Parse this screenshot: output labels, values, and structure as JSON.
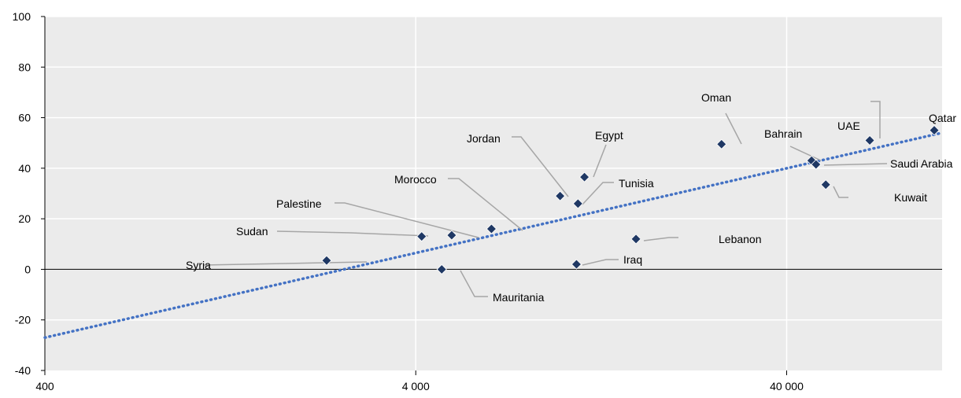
{
  "chart_data": {
    "type": "scatter",
    "title": "",
    "xlabel": "",
    "ylabel": "",
    "x_scale": "log",
    "xlim": [
      400,
      105000
    ],
    "ylim": [
      -40,
      100
    ],
    "x_ticks": [
      400,
      4000,
      40000
    ],
    "x_tick_labels": [
      "400",
      "4 000",
      "40 000"
    ],
    "y_ticks": [
      -40,
      -20,
      0,
      20,
      40,
      60,
      80,
      100
    ],
    "y_tick_labels": [
      "-40",
      "-20",
      "0",
      "20",
      "40",
      "60",
      "80",
      "100"
    ],
    "grid": "horizontal",
    "legend": "none",
    "trendline": {
      "style": "dotted",
      "color": "#4472C4",
      "y_at_xmin": -27,
      "y_at_xmax": 54
    },
    "colors": {
      "plot_bg": "#EBEBEB",
      "grid": "#FFFFFF",
      "marker": "#1F3864",
      "leader": "#A6A6A6",
      "trend": "#4472C4"
    },
    "points": [
      {
        "name": "Syria",
        "x": 2300,
        "y": 3.5
      },
      {
        "name": "Sudan",
        "x": 4150,
        "y": 13
      },
      {
        "name": "Mauritania",
        "x": 4700,
        "y": 0
      },
      {
        "name": "Palestine",
        "x": 5000,
        "y": 13.5
      },
      {
        "name": "Morocco",
        "x": 6400,
        "y": 16
      },
      {
        "name": "Jordan",
        "x": 9800,
        "y": 29
      },
      {
        "name": "Iraq",
        "x": 10850,
        "y": 2
      },
      {
        "name": "Tunisia",
        "x": 10950,
        "y": 26
      },
      {
        "name": "Egypt",
        "x": 11400,
        "y": 36.5
      },
      {
        "name": "Lebanon",
        "x": 15700,
        "y": 12
      },
      {
        "name": "Oman",
        "x": 26700,
        "y": 49.5
      },
      {
        "name": "Bahrain",
        "x": 46700,
        "y": 43
      },
      {
        "name": "Saudi Arabia",
        "x": 48000,
        "y": 41.5
      },
      {
        "name": "Kuwait",
        "x": 51000,
        "y": 33.5
      },
      {
        "name": "UAE",
        "x": 67000,
        "y": 51
      },
      {
        "name": "Qatar",
        "x": 100000,
        "y": 55
      }
    ]
  }
}
